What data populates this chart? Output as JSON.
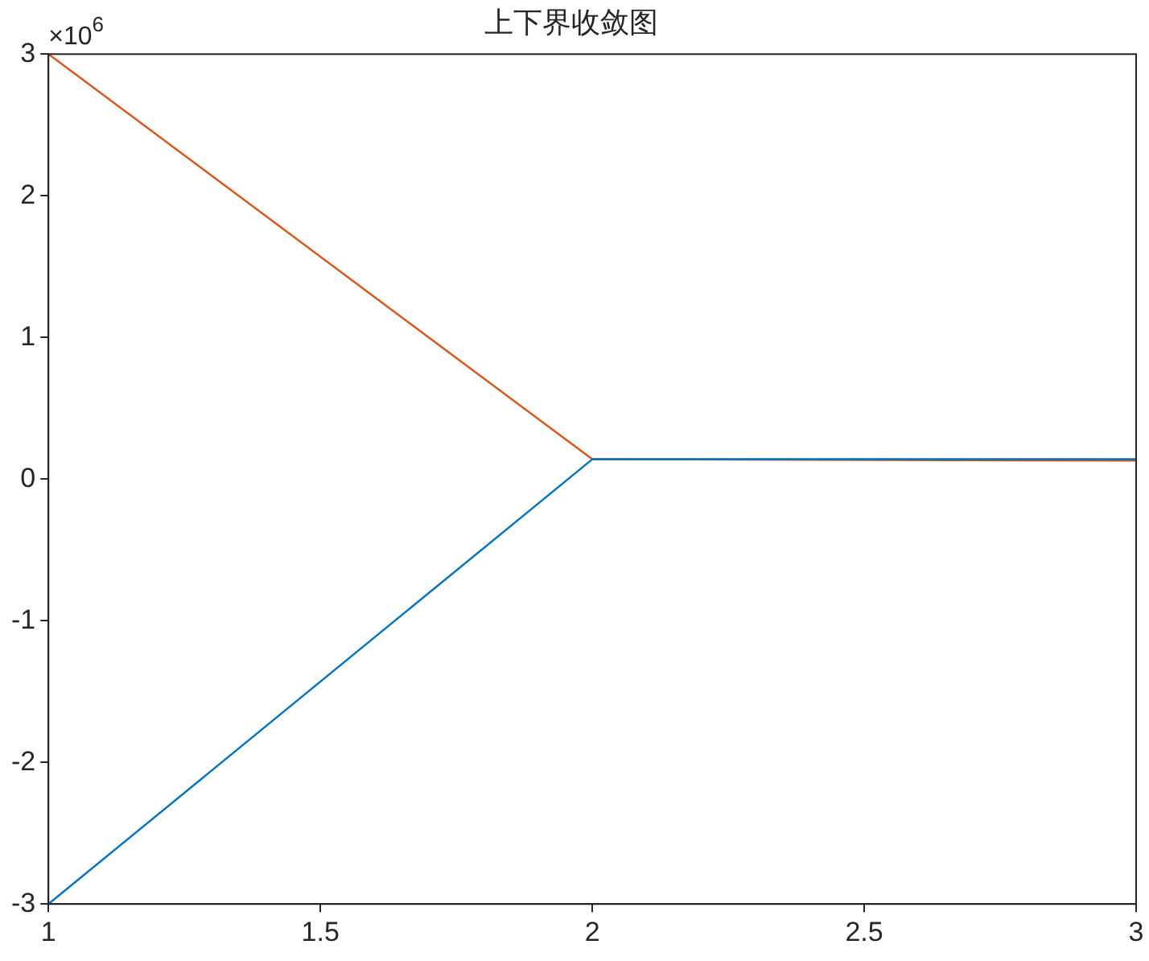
{
  "chart_data": {
    "type": "line",
    "title": "上下界收敛图",
    "x": [
      1,
      2,
      3
    ],
    "series": [
      {
        "color": "#0072bd",
        "values": [
          -3,
          0.14,
          0.14
        ]
      },
      {
        "color": "#d95319",
        "values": [
          3,
          0.14,
          0.13
        ]
      }
    ],
    "xlim": [
      1,
      3
    ],
    "xticks": [
      1,
      1.5,
      2,
      2.5,
      3
    ],
    "ylim": [
      -3,
      3
    ],
    "yticks": [
      -3,
      -2,
      -1,
      0,
      1,
      2,
      3
    ],
    "annotations": [
      "×10$^{6}$"
    ],
    "grid": false,
    "legend": false,
    "marker": "none",
    "line_style": "solid"
  }
}
